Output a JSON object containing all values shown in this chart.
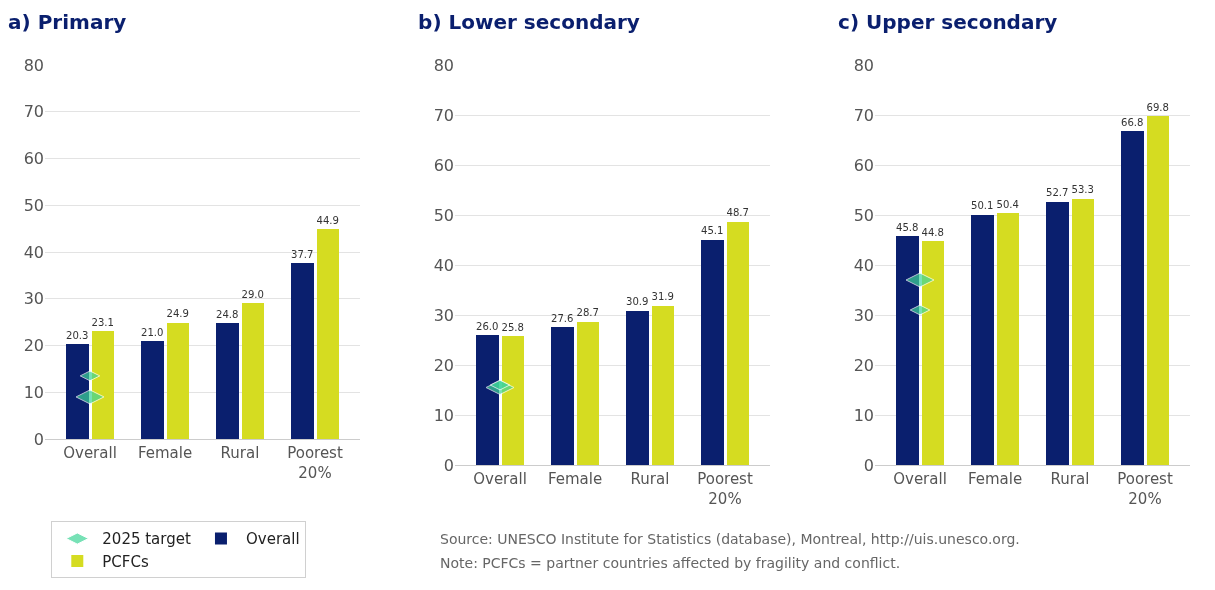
{
  "chart_data": [
    {
      "type": "bar",
      "title": "a) Primary",
      "categories": [
        "Overall",
        "Female",
        "Rural",
        "Poorest\n20%"
      ],
      "ylim": [
        0,
        80
      ],
      "yticks": [
        0,
        10,
        20,
        30,
        40,
        50,
        60,
        70,
        80
      ],
      "grid": "y",
      "legend": "bottom left",
      "series": [
        {
          "name": "2025 target",
          "type": "scatter",
          "color": "#3ed598",
          "x": [
            "Overall",
            "Overall"
          ],
          "values": [
            9.0,
            13.5
          ]
        },
        {
          "name": "Overall",
          "color": "#0a1f6e",
          "values": [
            20.3,
            21.0,
            24.8,
            37.7
          ],
          "value_labels": [
            "20.3",
            "21.0",
            "24.8",
            "37.7"
          ]
        },
        {
          "name": "PCFCs",
          "color": "#d5dc21",
          "values": [
            23.1,
            24.9,
            29.0,
            44.9
          ],
          "value_labels": [
            "23.1",
            "24.9",
            "29.0",
            "44.9"
          ]
        }
      ]
    },
    {
      "type": "bar",
      "title": "b) Lower secondary",
      "categories": [
        "Overall",
        "Female",
        "Rural",
        "Poorest\n20%"
      ],
      "ylim": [
        0,
        80
      ],
      "yticks": [
        0,
        10,
        20,
        30,
        40,
        50,
        60,
        70,
        80
      ],
      "grid": "y",
      "annotations": [
        "Source: UNESCO Institute for Statistics (database), Montreal, http://uis.unesco.org.",
        "Note: PCFCs = partner countries affected by fragility and conflict."
      ],
      "series": [
        {
          "type": "scatter",
          "color": "#3ed598",
          "x": [
            "Overall",
            "Overall"
          ],
          "values": [
            15.5,
            16.0
          ]
        },
        {
          "color": "#0a1f6e",
          "values": [
            26.0,
            27.6,
            30.9,
            45.1
          ],
          "value_labels": [
            "26.0",
            "27.6",
            "30.9",
            "45.1"
          ]
        },
        {
          "color": "#d5dc21",
          "values": [
            25.8,
            28.7,
            31.9,
            48.7
          ],
          "value_labels": [
            "25.8",
            "28.7",
            "31.9",
            "48.7"
          ]
        }
      ]
    },
    {
      "type": "bar",
      "title": "c) Upper secondary",
      "categories": [
        "Overall",
        "Female",
        "Rural",
        "Poorest\n20%"
      ],
      "ylim": [
        0,
        80
      ],
      "yticks": [
        0,
        10,
        20,
        30,
        40,
        50,
        60,
        70,
        80
      ],
      "grid": "y",
      "series": [
        {
          "type": "scatter",
          "color": "#3ed598",
          "x": [
            "Overall",
            "Overall"
          ],
          "values": [
            37.0,
            31.0
          ]
        },
        {
          "color": "#0a1f6e",
          "values": [
            45.8,
            50.1,
            52.7,
            66.8
          ],
          "value_labels": [
            "45.8",
            "50.1",
            "52.7",
            "66.8"
          ]
        },
        {
          "color": "#d5dc21",
          "values": [
            44.8,
            50.4,
            53.3,
            69.8
          ],
          "value_labels": [
            "44.8",
            "50.4",
            "53.3",
            "69.8"
          ]
        }
      ]
    }
  ]
}
